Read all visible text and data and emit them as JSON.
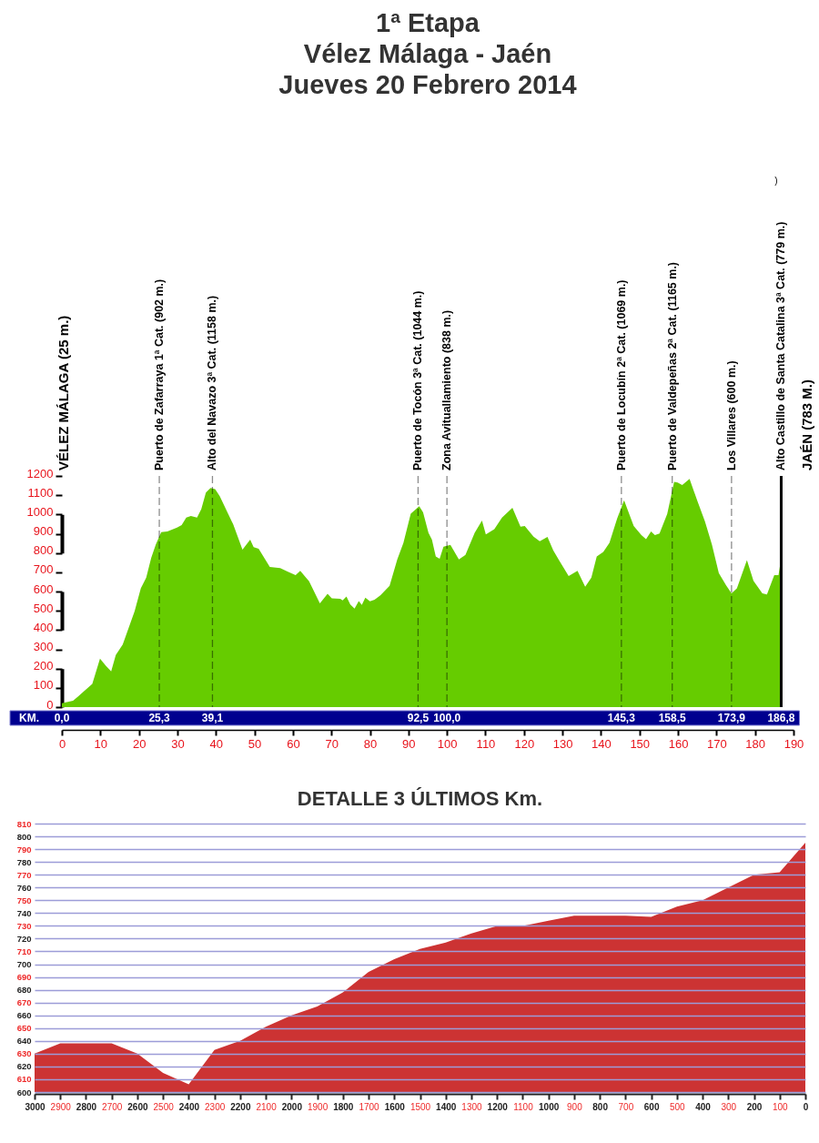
{
  "chart_data": [
    {
      "type": "area",
      "title": "1ª Etapa\nVélez Málaga - Jaén\nJueves 20 Febrero 2014",
      "x": [
        0,
        2.9,
        4.3,
        7.9,
        9.9,
        11.4,
        12.8,
        14.0,
        15.8,
        18.9,
        20.5,
        21.9,
        23.2,
        24.4,
        25.8,
        27.4,
        29.9,
        31.1,
        32.3,
        33.5,
        35.1,
        36.2,
        37.4,
        38.6,
        39.8,
        41.0,
        44.5,
        46.9,
        48.9,
        49.8,
        51.1,
        54.0,
        56.7,
        58.7,
        60.7,
        61.9,
        64.2,
        67.0,
        69.0,
        70.1,
        72.3,
        72.9,
        73.9,
        74.9,
        76.0,
        77.1,
        77.9,
        78.8,
        80.0,
        81.2,
        82.7,
        85.1,
        87.1,
        88.7,
        90.6,
        92.8,
        93.8,
        95.2,
        96.1,
        97.1,
        98.1,
        99.1,
        100.9,
        103.1,
        104.8,
        107.2,
        109.1,
        110.1,
        112.3,
        114.3,
        117.0,
        119.1,
        120.2,
        122.5,
        124.1,
        126.1,
        127.6,
        129.2,
        131.6,
        133.9,
        135.9,
        137.5,
        138.9,
        140.6,
        142.2,
        144.2,
        146.0,
        148.5,
        150.5,
        151.7,
        153.0,
        154.0,
        155.2,
        157.2,
        159.0,
        159.9,
        161.1,
        163.0,
        165.1,
        167.0,
        168.8,
        170.6,
        172.5,
        173.9,
        175.3,
        177.9,
        179.6,
        181.9,
        183.1,
        185.0,
        186.1,
        186.8
      ],
      "series": [
        {
          "color": "#66cc00",
          "values": [
            20,
            33,
            57,
            120,
            252,
            215,
            186,
            270,
            325,
            498,
            617,
            672,
            775,
            845,
            908,
            912,
            932,
            945,
            984,
            992,
            984,
            1027,
            1114,
            1137,
            1132,
            1095,
            948,
            817,
            869,
            830,
            822,
            727,
            722,
            703,
            685,
            707,
            653,
            538,
            588,
            565,
            562,
            554,
            574,
            533,
            511,
            550,
            530,
            568,
            549,
            557,
            580,
            629,
            767,
            853,
            1004,
            1043,
            1011,
            905,
            869,
            782,
            770,
            833,
            842,
            767,
            790,
            905,
            968,
            896,
            924,
            984,
            1035,
            937,
            940,
            885,
            861,
            883,
            814,
            759,
            680,
            707,
            625,
            672,
            782,
            806,
            853,
            979,
            1074,
            940,
            893,
            872,
            912,
            893,
            901,
            1003,
            1169,
            1166,
            1153,
            1185,
            1066,
            964,
            845,
            696,
            632,
            590,
            617,
            763,
            656,
            590,
            585,
            685,
            685,
            775
          ]
        }
      ],
      "xlim": [
        0,
        190
      ],
      "xticks": [
        0,
        10,
        20,
        30,
        40,
        50,
        60,
        70,
        80,
        90,
        100,
        110,
        120,
        130,
        140,
        150,
        160,
        170,
        180,
        190
      ],
      "ylim": [
        0,
        1200
      ],
      "yticks": [
        0,
        100,
        200,
        300,
        400,
        500,
        600,
        700,
        800,
        900,
        1000,
        1100,
        1200
      ],
      "x2lim": [
        0,
        186.8
      ],
      "x2label": "KM.",
      "x2ticks": [
        {
          "value": 0,
          "label": "0,0"
        },
        {
          "value": 25.3,
          "label": "25,3"
        },
        {
          "value": 39.1,
          "label": "39,1"
        },
        {
          "value": 92.5,
          "label": "92,5"
        },
        {
          "value": 100,
          "label": "100,0"
        },
        {
          "value": 145.3,
          "label": "145,3"
        },
        {
          "value": 158.5,
          "label": "158,5"
        },
        {
          "value": 173.9,
          "label": "173,9"
        },
        {
          "value": 186.8,
          "label": "186,8"
        }
      ],
      "ref_lines": [
        {
          "axis": "x",
          "value": 25.3,
          "label": "Puerto de Zafarraya 1ª Cat. (902 m.)",
          "line_style": "dashed"
        },
        {
          "axis": "x",
          "value": 39.1,
          "label": "Alto del Navazo 3ª Cat. (1158 m.)",
          "line_style": "dashed"
        },
        {
          "axis": "x",
          "value": 92.5,
          "label": "Puerto de Tocón 3ª Cat. (1044 m.)",
          "line_style": "dashed"
        },
        {
          "axis": "x",
          "value": 100,
          "label": "Zona Avituallamiento (838 m.)",
          "line_style": "dashed"
        },
        {
          "axis": "x",
          "value": 145.3,
          "label": "Puerto de Locubín 2ª Cat. (1069 m.)",
          "line_style": "dashed"
        },
        {
          "axis": "x",
          "value": 158.5,
          "label": "Puerto de Valdepeñas 2ª Cat. (1165 m.)",
          "line_style": "dashed"
        },
        {
          "axis": "x",
          "value": 173.9,
          "label": "Los Villares (600 m.)",
          "line_style": "dashed"
        },
        {
          "axis": "x",
          "value": 186.8,
          "label": "Alto Castillo de Santa Catalina 3ª Cat. (779 m.)",
          "line_style": "solid",
          "color": "#000000"
        }
      ],
      "annotations": [
        "VÉLEZ MÁLAGA (25 m.)",
        "JAÉN (783 M.)",
        ")"
      ]
    },
    {
      "type": "area",
      "title": "DETALLE 3 ÚLTIMOS Km.",
      "x": [
        3000,
        2900,
        2700,
        2600,
        2500,
        2400,
        2300,
        2200,
        2100,
        2000,
        1900,
        1800,
        1700,
        1600,
        1500,
        1400,
        1300,
        1200,
        1100,
        1000,
        900,
        800,
        700,
        600,
        500,
        400,
        300,
        200,
        100,
        0
      ],
      "series": [
        {
          "color": "#cc3333",
          "values": [
            630,
            638,
            638,
            630,
            615,
            606,
            633,
            640,
            651,
            660,
            667,
            678,
            694,
            704,
            712,
            717,
            724,
            730,
            730,
            734,
            738,
            738,
            738,
            737,
            745,
            750,
            760,
            770,
            772,
            795
          ]
        }
      ],
      "xlim": [
        3000,
        0
      ],
      "xticks": [
        3000,
        2900,
        2800,
        2700,
        2600,
        2500,
        2400,
        2300,
        2200,
        2100,
        2000,
        1900,
        1800,
        1700,
        1600,
        1500,
        1400,
        1300,
        1200,
        1100,
        1000,
        900,
        800,
        700,
        600,
        500,
        400,
        300,
        200,
        100,
        0
      ],
      "ylim": [
        600,
        810
      ],
      "yticks": [
        600,
        610,
        620,
        630,
        640,
        650,
        660,
        670,
        680,
        690,
        700,
        710,
        720,
        730,
        740,
        750,
        760,
        770,
        780,
        790,
        800,
        810
      ],
      "grid": "y"
    }
  ]
}
